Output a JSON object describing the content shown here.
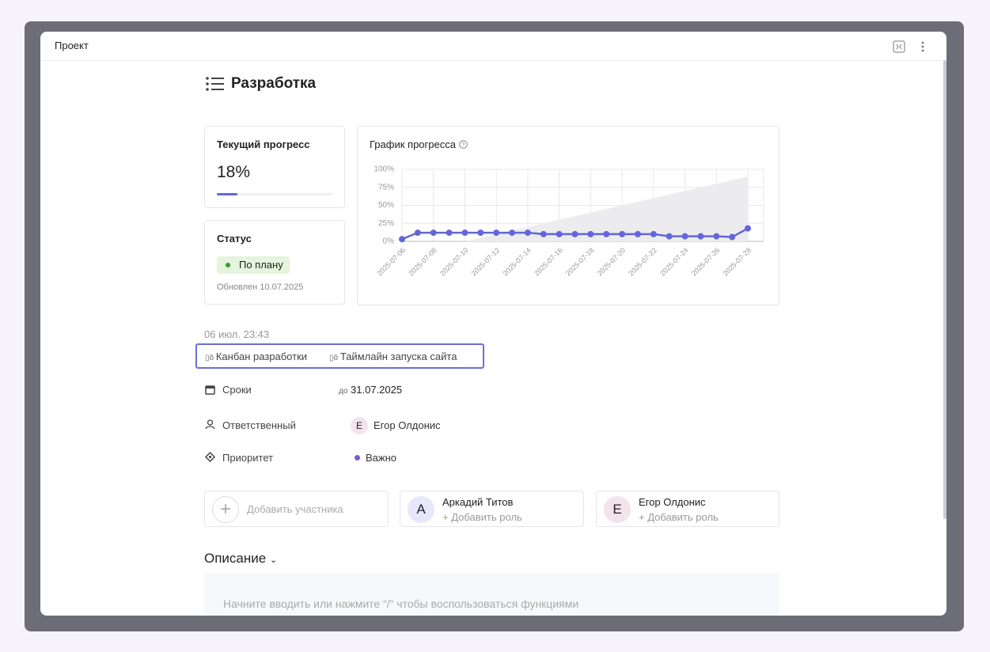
{
  "header": {
    "title": "Проект"
  },
  "task": {
    "title": "Разработка"
  },
  "progress": {
    "label": "Текущий прогресс",
    "value": 18,
    "value_label": "18%"
  },
  "status": {
    "label": "Статус",
    "value": "По плану",
    "updated": "Обновлен 10.07.2025"
  },
  "chart_data": {
    "type": "line",
    "title": "График прогресса",
    "categories": [
      "2025-07-06",
      null,
      "2025-07-08",
      null,
      "2025-07-10",
      null,
      "2025-07-12",
      null,
      "2025-07-14",
      null,
      "2025-07-16",
      null,
      "2025-07-18",
      null,
      "2025-07-20",
      null,
      "2025-07-22",
      null,
      "2025-07-24",
      null,
      "2025-07-26",
      null,
      "2025-07-28"
    ],
    "series": [
      {
        "style": "area",
        "color": "#ececee",
        "values": [
          null,
          null,
          null,
          null,
          0,
          5,
          10,
          15,
          20,
          25,
          30,
          35,
          40,
          45,
          50,
          55,
          60,
          65,
          70,
          75,
          80,
          85,
          90
        ]
      },
      {
        "style": "line",
        "color": "#6366d9",
        "values": [
          3,
          12,
          12,
          12,
          12,
          12,
          12,
          12,
          12,
          10,
          10,
          10,
          10,
          10,
          10,
          10,
          10,
          7,
          7,
          7,
          7,
          6,
          18
        ]
      }
    ],
    "ylim": [
      0,
      100
    ],
    "yticks": [
      {
        "value": 0,
        "label": "0%"
      },
      {
        "value": 25,
        "label": "25%"
      },
      {
        "value": 50,
        "label": "50%"
      },
      {
        "value": 75,
        "label": "75%"
      },
      {
        "value": 100,
        "label": "100%"
      }
    ],
    "grid": true
  },
  "created": "06 июл. 23:43",
  "links": [
    "Канбан разработки",
    "Таймлайн запуска сайта"
  ],
  "fields": {
    "deadline": {
      "label": "Сроки",
      "prefix": "до",
      "value": "31.07.2025"
    },
    "assignee": {
      "label": "Ответственный",
      "initial": "Е",
      "value": "Егор Олдонис"
    },
    "priority": {
      "label": "Приоритет",
      "value": "Важно"
    }
  },
  "members": {
    "add": "Добавить участника",
    "list": [
      {
        "initial": "А",
        "name": "Аркадий Титов",
        "role": "+ Добавить роль"
      },
      {
        "initial": "Е",
        "name": "Егор Олдонис",
        "role": "+ Добавить роль"
      }
    ]
  },
  "description": {
    "title": "Описание",
    "placeholder": "Начните вводить или нажмите “/” чтобы воспользоваться функциями"
  }
}
